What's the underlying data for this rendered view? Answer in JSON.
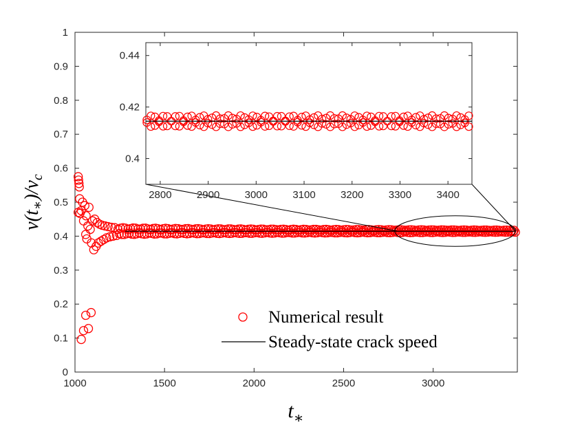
{
  "chart_data": {
    "type": "scatter",
    "xlabel": "t*",
    "ylabel": "v(t*)/vc",
    "xlim": [
      1000,
      3470
    ],
    "ylim": [
      0,
      1
    ],
    "xticks": [
      1000,
      1500,
      2000,
      2500,
      3000
    ],
    "yticks": [
      0,
      0.1,
      0.2,
      0.3,
      0.4,
      0.5,
      0.6,
      0.7,
      0.8,
      0.9,
      1
    ],
    "xtick_labels": [
      "1000",
      "1500",
      "2000",
      "2500",
      "3000"
    ],
    "ytick_labels": [
      "0",
      "0.1",
      "0.2",
      "0.3",
      "0.4",
      "0.5",
      "0.6",
      "0.7",
      "0.8",
      "0.9",
      "1"
    ],
    "legend": {
      "location": "lower-right",
      "entries": [
        {
          "label": "Numerical result",
          "marker": "open-circle",
          "color": "#ff0000"
        },
        {
          "label": "Steady-state crack speed",
          "marker": "line",
          "color": "#000000"
        }
      ]
    },
    "series": [
      {
        "name": "Numerical result",
        "kind": "scatter",
        "color": "#ff0000",
        "early_points": [
          {
            "x": 1018,
            "y": 0.575
          },
          {
            "x": 1020,
            "y": 0.565
          },
          {
            "x": 1022,
            "y": 0.555
          },
          {
            "x": 1024,
            "y": 0.545
          },
          {
            "x": 1018,
            "y": 0.47
          },
          {
            "x": 1026,
            "y": 0.51
          },
          {
            "x": 1028,
            "y": 0.467
          },
          {
            "x": 1035,
            "y": 0.475
          },
          {
            "x": 1042,
            "y": 0.5
          },
          {
            "x": 1048,
            "y": 0.445
          },
          {
            "x": 1055,
            "y": 0.49
          },
          {
            "x": 1060,
            "y": 0.405
          },
          {
            "x": 1062,
            "y": 0.46
          },
          {
            "x": 1066,
            "y": 0.392
          },
          {
            "x": 1072,
            "y": 0.43
          },
          {
            "x": 1078,
            "y": 0.485
          },
          {
            "x": 1085,
            "y": 0.42
          },
          {
            "x": 1092,
            "y": 0.38
          },
          {
            "x": 1098,
            "y": 0.445
          },
          {
            "x": 1105,
            "y": 0.36
          },
          {
            "x": 1110,
            "y": 0.45
          },
          {
            "x": 1118,
            "y": 0.37
          },
          {
            "x": 1124,
            "y": 0.44
          },
          {
            "x": 1130,
            "y": 0.38
          },
          {
            "x": 1138,
            "y": 0.435
          },
          {
            "x": 1145,
            "y": 0.385
          },
          {
            "x": 1152,
            "y": 0.432
          },
          {
            "x": 1160,
            "y": 0.39
          },
          {
            "x": 1168,
            "y": 0.43
          },
          {
            "x": 1176,
            "y": 0.395
          },
          {
            "x": 1185,
            "y": 0.428
          },
          {
            "x": 1194,
            "y": 0.398
          },
          {
            "x": 1203,
            "y": 0.426
          },
          {
            "x": 1212,
            "y": 0.4
          },
          {
            "x": 1222,
            "y": 0.425
          },
          {
            "x": 1232,
            "y": 0.402
          },
          {
            "x": 1035,
            "y": 0.096
          },
          {
            "x": 1048,
            "y": 0.122
          },
          {
            "x": 1060,
            "y": 0.167
          },
          {
            "x": 1075,
            "y": 0.128
          },
          {
            "x": 1090,
            "y": 0.175
          }
        ],
        "steady_band": {
          "x_start": 1240,
          "x_end": 3460,
          "center": 0.4147,
          "half_width_start": 0.011,
          "half_width_end": 0.003
        }
      },
      {
        "name": "Steady-state crack speed",
        "kind": "line",
        "color": "#000000",
        "x": [
          1280,
          3460
        ],
        "y": [
          0.4145,
          0.4145
        ]
      }
    ],
    "inset": {
      "xlim": [
        2770,
        3450
      ],
      "ylim": [
        0.39,
        0.445
      ],
      "xticks": [
        2800,
        2900,
        3000,
        3100,
        3200,
        3300,
        3400
      ],
      "yticks": [
        0.4,
        0.42,
        0.44
      ],
      "xtick_labels": [
        "2800",
        "2900",
        "3000",
        "3100",
        "3200",
        "3300",
        "3400"
      ],
      "ytick_labels": [
        "0.4",
        "0.42",
        "0.44"
      ],
      "oscillation": {
        "center": 0.4145,
        "amplitude": 0.0022,
        "period": 53,
        "sample_step": 8.5
      },
      "steady_line": 0.4145,
      "zoom_region": {
        "x": [
          2785,
          3460
        ],
        "y": [
          0.37,
          0.46
        ]
      }
    }
  }
}
